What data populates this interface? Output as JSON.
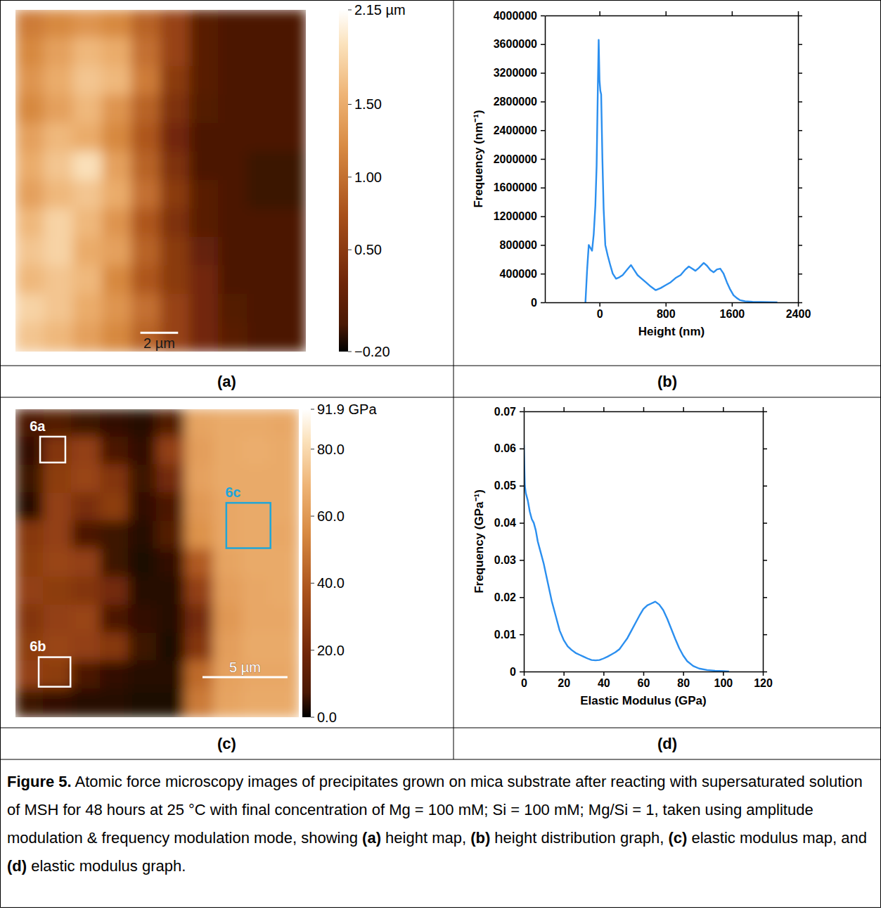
{
  "chart_data": [
    {
      "type": "heatmap",
      "label": "(a)",
      "cells": [
        [
          1.1,
          1.2,
          1.3,
          1.2,
          0.9,
          0.6,
          0.1,
          0.0,
          0.0,
          0.0
        ],
        [
          1.2,
          1.4,
          1.6,
          1.5,
          1.0,
          0.6,
          0.1,
          0.0,
          0.0,
          0.0
        ],
        [
          1.3,
          1.5,
          1.7,
          1.6,
          1.1,
          0.5,
          0.1,
          0.0,
          0.0,
          0.0
        ],
        [
          1.2,
          1.4,
          1.6,
          1.3,
          0.9,
          0.4,
          0.05,
          0.0,
          0.0,
          0.0
        ],
        [
          1.4,
          1.6,
          1.5,
          1.2,
          0.8,
          0.3,
          0.0,
          0.0,
          0.0,
          0.0
        ],
        [
          1.5,
          1.7,
          1.9,
          1.4,
          0.9,
          0.4,
          0.0,
          0.0,
          -0.05,
          -0.05
        ],
        [
          1.4,
          1.6,
          1.7,
          1.5,
          1.0,
          0.5,
          0.1,
          0.0,
          -0.05,
          -0.05
        ],
        [
          1.6,
          1.8,
          1.6,
          1.3,
          0.8,
          0.4,
          0.1,
          0.0,
          0.0,
          0.0
        ],
        [
          1.7,
          1.8,
          1.5,
          1.4,
          0.9,
          0.5,
          0.2,
          0.0,
          0.0,
          0.0
        ],
        [
          1.6,
          1.7,
          1.6,
          1.2,
          0.8,
          0.5,
          0.3,
          0.0,
          0.0,
          0.0
        ],
        [
          1.8,
          1.7,
          1.5,
          1.3,
          1.0,
          0.6,
          0.3,
          0.05,
          0.0,
          0.0
        ],
        [
          1.7,
          1.6,
          1.4,
          1.2,
          0.9,
          0.6,
          0.3,
          0.1,
          0.0,
          0.0
        ]
      ],
      "colorbar": {
        "range": [
          -0.2,
          2.15
        ],
        "ticks": [
          {
            "value": 2.15,
            "label": "2.15 µm"
          },
          {
            "value": 1.5,
            "label": "1.50"
          },
          {
            "value": 1,
            "label": "1.00"
          },
          {
            "value": 0.5,
            "label": "0.50"
          },
          {
            "value": -0.2,
            "label": "−0.20"
          }
        ]
      },
      "scale_bar": "2 µm"
    },
    {
      "type": "line",
      "label": "(b)",
      "x_label": "Height (nm)",
      "y_label": "Frequency (nm⁻¹)",
      "x": [
        -170,
        -150,
        -130,
        -110,
        -90,
        -70,
        -50,
        -35,
        -20,
        -10,
        0,
        10,
        20,
        35,
        50,
        70,
        100,
        130,
        160,
        200,
        240,
        280,
        330,
        380,
        420,
        460,
        500,
        560,
        620,
        680,
        740,
        800,
        860,
        920,
        980,
        1040,
        1080,
        1120,
        1160,
        1200,
        1260,
        1300,
        1340,
        1380,
        1420,
        1460,
        1500,
        1540,
        1580,
        1620,
        1660,
        1700,
        1760,
        1850,
        1950,
        2050,
        2150
      ],
      "series": [
        {
          "color": "#2b8fef",
          "values": [
            0,
            450000,
            800000,
            760000,
            720000,
            950000,
            1350000,
            1900000,
            3000000,
            3660000,
            3100000,
            2950000,
            2900000,
            2000000,
            1300000,
            800000,
            650000,
            520000,
            400000,
            330000,
            350000,
            380000,
            450000,
            520000,
            450000,
            380000,
            340000,
            280000,
            220000,
            170000,
            200000,
            240000,
            280000,
            340000,
            380000,
            460000,
            500000,
            470000,
            440000,
            480000,
            550000,
            510000,
            450000,
            420000,
            460000,
            470000,
            400000,
            280000,
            180000,
            100000,
            60000,
            30000,
            15000,
            8000,
            5000,
            3000,
            1000
          ]
        }
      ],
      "xlim": [
        -660,
        2400
      ],
      "xticks": [
        0,
        800,
        1600,
        2400
      ],
      "ylim": [
        0,
        4000000
      ],
      "yticks": [
        0,
        400000,
        800000,
        1200000,
        1600000,
        2000000,
        2400000,
        2800000,
        3200000,
        3600000,
        4000000
      ]
    },
    {
      "type": "heatmap",
      "label": "(c)",
      "cells": [
        [
          8,
          10,
          6,
          5,
          4,
          10,
          64,
          66,
          66,
          65
        ],
        [
          5,
          25,
          30,
          8,
          5,
          30,
          62,
          66,
          67,
          66
        ],
        [
          6,
          28,
          32,
          25,
          6,
          20,
          63,
          66,
          66,
          66
        ],
        [
          4,
          30,
          22,
          28,
          5,
          8,
          60,
          65,
          66,
          66
        ],
        [
          26,
          30,
          8,
          6,
          4,
          10,
          58,
          65,
          66,
          65
        ],
        [
          28,
          32,
          30,
          6,
          3,
          5,
          40,
          64,
          66,
          66
        ],
        [
          30,
          28,
          25,
          20,
          4,
          4,
          30,
          62,
          65,
          66
        ],
        [
          25,
          30,
          32,
          8,
          5,
          4,
          20,
          60,
          65,
          65
        ],
        [
          28,
          32,
          30,
          26,
          6,
          3,
          25,
          62,
          66,
          66
        ],
        [
          30,
          28,
          8,
          5,
          4,
          4,
          45,
          63,
          65,
          65
        ],
        [
          6,
          5,
          4,
          4,
          3,
          3,
          50,
          64,
          66,
          66
        ]
      ],
      "colorbar": {
        "range": [
          0,
          91.9
        ],
        "ticks": [
          {
            "value": 91.9,
            "label": "91.9 GPa"
          },
          {
            "value": 80,
            "label": "80.0"
          },
          {
            "value": 60,
            "label": "60.0"
          },
          {
            "value": 40,
            "label": "40.0"
          },
          {
            "value": 20,
            "label": "20.0"
          },
          {
            "value": 0,
            "label": "0.0"
          }
        ]
      },
      "scale_bar": "5 µm",
      "annotations": [
        {
          "text": "6a",
          "color": "#ffffff"
        },
        {
          "text": "6c",
          "color": "#1fa6d8"
        },
        {
          "text": "6b",
          "color": "#ffffff"
        }
      ]
    },
    {
      "type": "line",
      "label": "(d)",
      "x_label": "Elastic Modulus (GPa)",
      "y_label": "Frequency (GPa⁻¹)",
      "x": [
        0,
        0.5,
        1,
        2,
        3,
        4,
        5,
        6,
        7,
        8,
        9,
        10,
        12,
        14,
        16,
        18,
        20,
        22,
        24,
        26,
        28,
        30,
        32,
        34,
        36,
        38,
        40,
        42,
        44,
        46,
        48,
        50,
        52,
        54,
        56,
        58,
        60,
        62,
        64,
        66,
        68,
        70,
        72,
        74,
        76,
        78,
        80,
        82,
        85,
        88,
        92,
        96,
        100,
        103
      ],
      "series": [
        {
          "color": "#2b8fef",
          "values": [
            0.061,
            0.05,
            0.048,
            0.046,
            0.043,
            0.041,
            0.04,
            0.038,
            0.035,
            0.033,
            0.031,
            0.029,
            0.024,
            0.019,
            0.015,
            0.011,
            0.0085,
            0.0068,
            0.0058,
            0.005,
            0.0045,
            0.004,
            0.0035,
            0.0031,
            0.003,
            0.0031,
            0.0035,
            0.004,
            0.0046,
            0.0052,
            0.006,
            0.0075,
            0.009,
            0.011,
            0.013,
            0.015,
            0.0168,
            0.0178,
            0.0183,
            0.0188,
            0.018,
            0.0165,
            0.0142,
            0.0115,
            0.0088,
            0.0063,
            0.0043,
            0.0028,
            0.0015,
            0.0008,
            0.0004,
            0.0002,
            0.0001,
            0
          ]
        }
      ],
      "xlim": [
        0,
        120
      ],
      "xticks": [
        0,
        20,
        40,
        60,
        80,
        100,
        120
      ],
      "ylim": [
        0,
        0.07
      ],
      "yticks": [
        0,
        0.01,
        0.02,
        0.03,
        0.04,
        0.05,
        0.06,
        0.07
      ]
    }
  ],
  "caption": {
    "label": "Figure 5.",
    "parts": [
      " Atomic force microscopy images of precipitates grown on mica substrate after reacting with supersaturated solution of MSH for 48 hours at 25 °C with final concentration of Mg = 100 mM; Si = 100 mM; Mg/Si = 1, taken using amplitude modulation & frequency modulation mode, showing ",
      "(a)",
      " height map, ",
      "(b)",
      " height distribution graph, ",
      "(c)",
      " elastic modulus map, and ",
      "(d)",
      " elastic modulus graph."
    ]
  }
}
